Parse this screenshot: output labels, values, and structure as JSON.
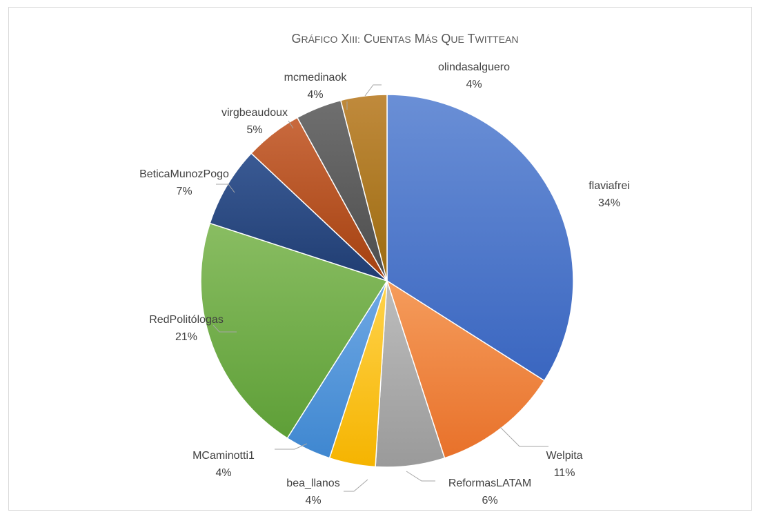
{
  "chart_data": {
    "type": "pie",
    "title": "Gráfico XIII: Cuentas más que twittean",
    "slices": [
      {
        "label": "flaviafrei",
        "value": 34,
        "display": "34%",
        "color_dark": "#3a66c0",
        "color_light": "#6a8fd6"
      },
      {
        "label": "Welpita",
        "value": 11,
        "display": "11%",
        "color_dark": "#e8712a",
        "color_light": "#f59c5c"
      },
      {
        "label": "ReformasLATAM",
        "value": 6,
        "display": "6%",
        "color_dark": "#9a9a9a",
        "color_light": "#bdbdbd"
      },
      {
        "label": "bea_llanos",
        "value": 4,
        "display": "4%",
        "color_dark": "#f5b400",
        "color_light": "#ffd34d"
      },
      {
        "label": "MCaminotti1",
        "value": 4,
        "display": "4%",
        "color_dark": "#3f87d0",
        "color_light": "#6fa8e4"
      },
      {
        "label": "RedPolitólogas",
        "value": 21,
        "display": "21%",
        "color_dark": "#5e9f37",
        "color_light": "#89bd62"
      },
      {
        "label": "BeticaMunozPogo",
        "value": 7,
        "display": "7%",
        "color_dark": "#203d72",
        "color_light": "#3a5a94"
      },
      {
        "label": "virgbeaudoux",
        "value": 5,
        "display": "5%",
        "color_dark": "#a4400f",
        "color_light": "#c96a3e"
      },
      {
        "label": "mcmedinaok",
        "value": 4,
        "display": "4%",
        "color_dark": "#4d4d4d",
        "color_light": "#6f6f6f"
      },
      {
        "label": "olindasalguero",
        "value": 4,
        "display": "4%",
        "color_dark": "#9c6b10",
        "color_light": "#c08a3c"
      }
    ]
  }
}
